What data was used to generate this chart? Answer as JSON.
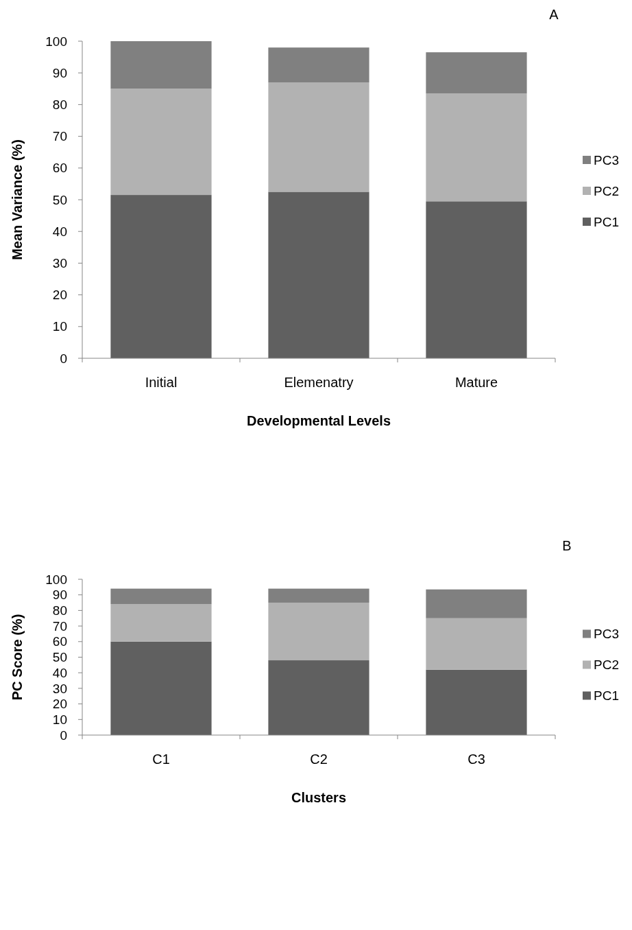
{
  "chart_data": [
    {
      "type": "bar",
      "stacked": true,
      "xlabel": "Developmental Levels",
      "ylabel": "Mean Variance (%)",
      "annotations": [
        "A"
      ],
      "categories": [
        "Initial",
        "Elemenatry",
        "Mature"
      ],
      "series": [
        {
          "name": "PC1",
          "color": "#606060",
          "values": [
            51.5,
            52.5,
            49.5
          ]
        },
        {
          "name": "PC2",
          "color": "#b2b2b2",
          "values": [
            33.5,
            34.5,
            34
          ]
        },
        {
          "name": "PC3",
          "color": "#808080",
          "values": [
            15,
            11,
            13
          ]
        }
      ],
      "ylim": [
        0,
        100
      ],
      "yticks": [
        0,
        10,
        20,
        30,
        40,
        50,
        60,
        70,
        80,
        90,
        100
      ],
      "grid": false,
      "legend": "right"
    },
    {
      "type": "bar",
      "stacked": true,
      "xlabel": "Clusters",
      "ylabel": "PC Score (%)",
      "annotations": [
        "B"
      ],
      "categories": [
        "C1",
        "C2",
        "C3"
      ],
      "series": [
        {
          "name": "PC1",
          "color": "#606060",
          "values": [
            60,
            48,
            42
          ]
        },
        {
          "name": "PC2",
          "color": "#b2b2b2",
          "values": [
            24,
            37,
            33
          ]
        },
        {
          "name": "PC3",
          "color": "#808080",
          "values": [
            10,
            9,
            18.5
          ]
        }
      ],
      "ylim": [
        0,
        100
      ],
      "yticks": [
        0,
        10,
        20,
        30,
        40,
        50,
        60,
        70,
        80,
        90,
        100
      ],
      "grid": false,
      "legend": "right"
    }
  ]
}
